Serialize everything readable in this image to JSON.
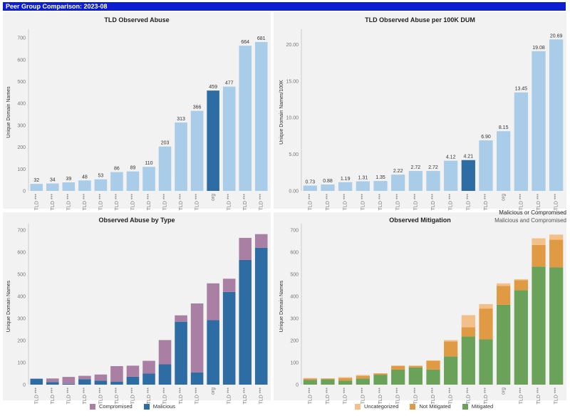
{
  "banner": "Peer Group Comparison: 2023-08",
  "categories": [
    "TLD ***",
    "TLD ***",
    "TLD ***",
    "TLD ***",
    "TLD ***",
    "TLD ***",
    "TLD ***",
    "TLD ***",
    "TLD ***",
    "TLD ***",
    "TLD ***",
    "org",
    "TLD ***",
    "TLD ***",
    "TLD ***"
  ],
  "highlight_index": 11,
  "colors": {
    "light": "#a9cce8",
    "dark": "#2e6da4",
    "compromised": "#a97fa3",
    "malicious": "#2e6da4",
    "uncategorized": "#f4c089",
    "not_mitigated": "#e09a43",
    "mitigated": "#6aa25a"
  },
  "legend_top_right": [
    "Malicious or Compromised",
    "Malicious and Compromised"
  ],
  "chart_data": [
    {
      "type": "bar",
      "title": "TLD Observed Abuse",
      "ylabel": "Unique Domain Names",
      "ylim": [
        0,
        720
      ],
      "yticks": [
        0,
        100,
        200,
        300,
        400,
        500,
        600,
        700
      ],
      "tick_labels": [
        "0",
        "100",
        "200",
        "300",
        "400",
        "500",
        "600",
        "700"
      ],
      "values": [
        32,
        34,
        39,
        48,
        53,
        86,
        89,
        110,
        203,
        313,
        366,
        459,
        477,
        664,
        681
      ],
      "value_labels": [
        "32",
        "34",
        "39",
        "48",
        "53",
        "86",
        "89",
        "110",
        "203",
        "313",
        "366",
        "459",
        "477",
        "664",
        "681"
      ]
    },
    {
      "type": "bar",
      "title": "TLD Observed Abuse per 100K DUM",
      "ylabel": "Unique Domain Names/100K",
      "ylim": [
        0,
        21.5
      ],
      "yticks": [
        0,
        5,
        10,
        15,
        20
      ],
      "tick_labels": [
        "0.00",
        "5.00",
        "10.00",
        "15.00",
        "20.00"
      ],
      "values": [
        0.73,
        0.88,
        1.19,
        1.31,
        1.35,
        2.22,
        2.72,
        2.72,
        4.12,
        4.21,
        6.9,
        8.15,
        13.45,
        19.08,
        20.69
      ],
      "value_labels": [
        "0.73",
        "0.88",
        "1.19",
        "1.31",
        "1.35",
        "2.22",
        "2.72",
        "2.72",
        "4.12",
        "4.21",
        "6.90",
        "8.15",
        "13.45",
        "19.08",
        "20.69"
      ],
      "highlight_index": 9
    },
    {
      "type": "stacked-bar",
      "title": "Observed Abuse by Type",
      "ylabel": "Unique Domain Names",
      "ylim": [
        0,
        710
      ],
      "yticks": [
        0,
        100,
        200,
        300,
        400,
        500,
        600,
        700
      ],
      "tick_labels": [
        "0",
        "100",
        "200",
        "300",
        "400",
        "500",
        "600",
        "700"
      ],
      "series": [
        {
          "name": "Malicious",
          "values": [
            27,
            12,
            4,
            25,
            18,
            14,
            36,
            50,
            92,
            285,
            55,
            292,
            420,
            565,
            620
          ]
        },
        {
          "name": "Compromised",
          "values": [
            0,
            16,
            31,
            15,
            28,
            70,
            50,
            58,
            110,
            29,
            313,
            167,
            60,
            100,
            62
          ]
        }
      ],
      "legend": [
        "Compromised",
        "Malicious"
      ]
    },
    {
      "type": "stacked-bar",
      "title": "Observed Mitigation",
      "ylabel": "Unique Domain Names",
      "ylim": [
        0,
        710
      ],
      "yticks": [
        0,
        100,
        200,
        300,
        400,
        500,
        600,
        700
      ],
      "tick_labels": [
        "0",
        "100",
        "200",
        "300",
        "400",
        "500",
        "600",
        "700"
      ],
      "series": [
        {
          "name": "Mitigated",
          "values": [
            22,
            24,
            18,
            28,
            45,
            68,
            78,
            68,
            128,
            218,
            205,
            362,
            428,
            535,
            532
          ]
        },
        {
          "name": "Not Mitigated",
          "values": [
            6,
            4,
            12,
            12,
            6,
            16,
            6,
            40,
            68,
            42,
            140,
            85,
            45,
            98,
            125
          ]
        },
        {
          "name": "Uncategorized",
          "values": [
            2,
            0,
            4,
            4,
            0,
            3,
            3,
            2,
            6,
            55,
            20,
            12,
            5,
            30,
            23
          ]
        }
      ],
      "legend": [
        "Uncategorized",
        "Not Mitigated",
        "Mitigated"
      ]
    }
  ]
}
